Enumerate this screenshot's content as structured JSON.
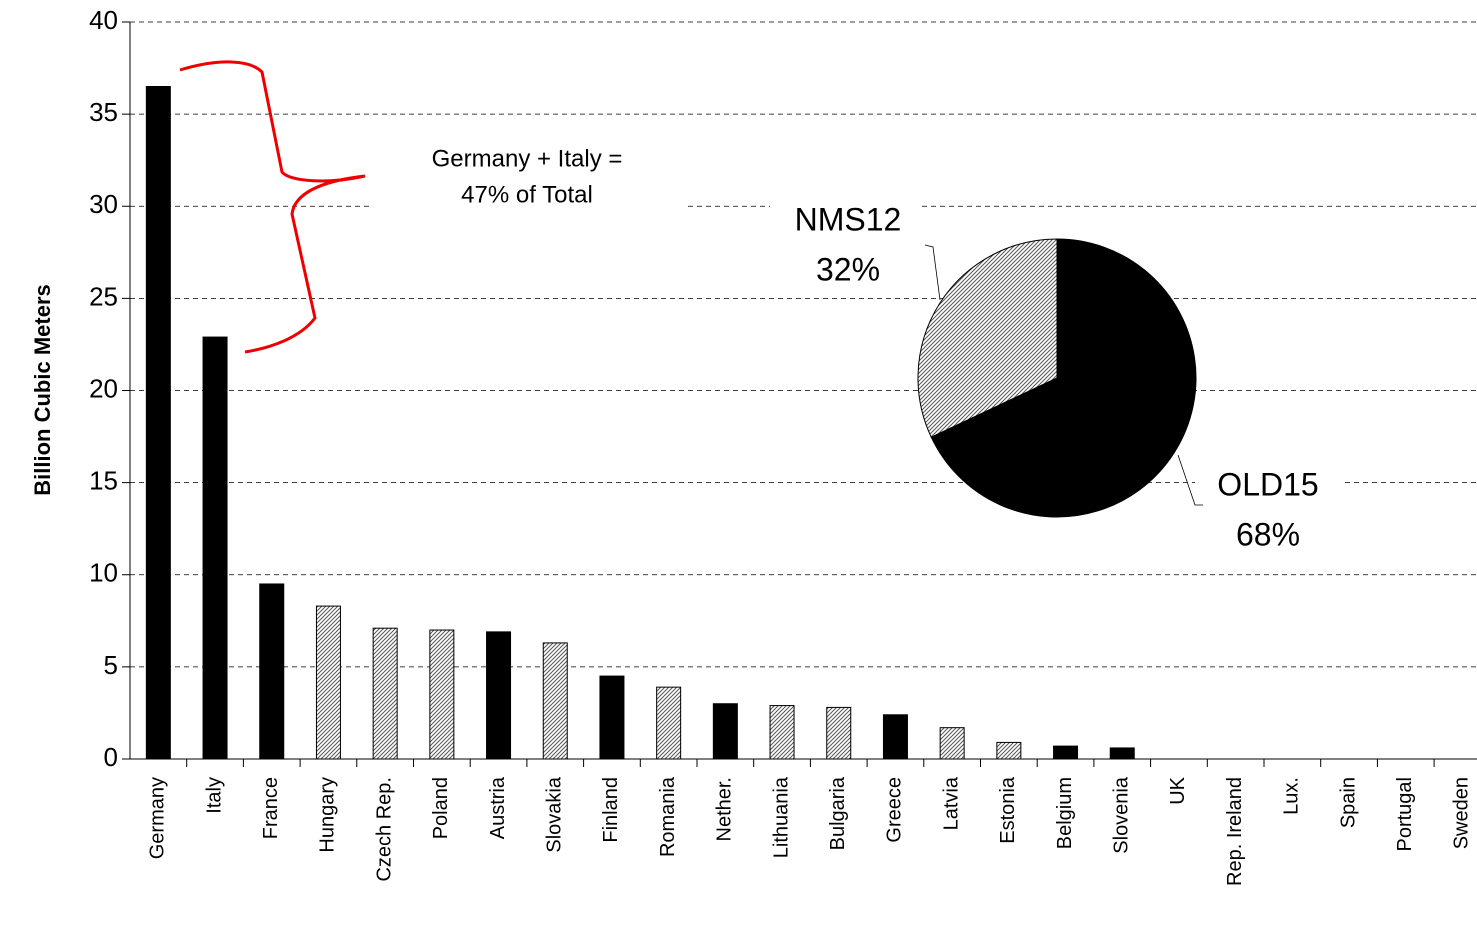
{
  "chart_data": [
    {
      "type": "bar",
      "y_label": "Billion Cubic Meters",
      "categories": [
        "Germany",
        "Italy",
        "France",
        "Hungary",
        "Czech Rep.",
        "Poland",
        "Austria",
        "Slovakia",
        "Finland",
        "Romania",
        "Nether.",
        "Lithuania",
        "Bulgaria",
        "Greece",
        "Latvia",
        "Estonia",
        "Belgium",
        "Slovenia",
        "UK",
        "Rep. Ireland",
        "Lux.",
        "Spain",
        "Portugal",
        "Sweden"
      ],
      "series": [
        {
          "name": "OLD15",
          "color": "#000000",
          "values": [
            36.5,
            22.9,
            9.5,
            null,
            null,
            null,
            6.9,
            null,
            4.5,
            null,
            3.0,
            null,
            null,
            2.4,
            null,
            null,
            0.7,
            0.6,
            0,
            0,
            0,
            0,
            0,
            0
          ]
        },
        {
          "name": "NMS12",
          "color": "hatch",
          "values": [
            null,
            null,
            null,
            8.3,
            7.1,
            7.0,
            null,
            6.3,
            null,
            3.9,
            null,
            2.9,
            2.8,
            null,
            1.7,
            0.9,
            null,
            null,
            null,
            null,
            null,
            null,
            null,
            null
          ]
        }
      ],
      "ylim": [
        0,
        40
      ],
      "yticks": [
        0,
        5,
        10,
        15,
        20,
        25,
        30,
        35,
        40
      ],
      "grid": true,
      "annotation": [
        "Germany + Italy =",
        "47% of Total"
      ]
    },
    {
      "type": "pie",
      "categories": [
        "NMS12",
        "OLD15"
      ],
      "values": [
        32,
        68
      ],
      "value_labels": [
        "32%",
        "68%"
      ],
      "colors": [
        "hatch",
        "#000000"
      ]
    }
  ]
}
